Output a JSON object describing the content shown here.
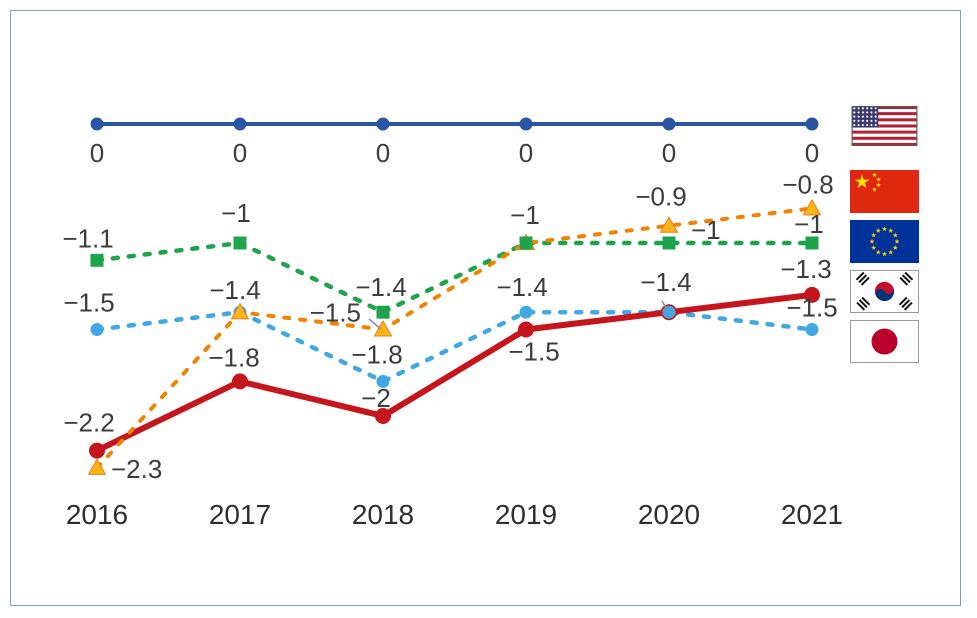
{
  "frame": {
    "background": "#ffffff",
    "border_color": "#7ba2c4"
  },
  "text_color": "#3c3c3c",
  "chart_data": {
    "type": "line",
    "x_labels": [
      "2016",
      "2017",
      "2018",
      "2019",
      "2020",
      "2021"
    ],
    "ylim": [
      -2.6,
      0.35
    ],
    "grid": false,
    "legend_position": "right",
    "legend_style": "country-flags",
    "series": [
      {
        "name": "United States",
        "icon": "usa-flag-icon",
        "line_color": "#2a55a2",
        "marker_color": "#2a55a2",
        "line_style": "solid",
        "marker": "circle",
        "values": [
          0,
          0,
          0,
          0,
          0,
          0
        ],
        "point_labels": [
          "0",
          "0",
          "0",
          "0",
          "0",
          "0"
        ]
      },
      {
        "name": "China",
        "icon": "china-flag-icon",
        "line_color": "#f08300",
        "marker_color": "#fdb515",
        "line_style": "dashed",
        "marker": "triangle",
        "values": [
          -2.3,
          -1.4,
          -1.5,
          -1,
          -0.9,
          -0.8
        ],
        "point_labels": [
          "−2.3",
          "−1.4",
          "−1.5",
          null,
          "−0.9",
          "−0.8"
        ]
      },
      {
        "name": "European Union",
        "icon": "eu-flag-icon",
        "line_color": "#1fa44d",
        "marker_color": "#1fa44d",
        "line_style": "dashed",
        "marker": "square",
        "values": [
          -1.1,
          -1,
          -1.4,
          -1,
          -1,
          -1
        ],
        "point_labels": [
          "−1.1",
          "−1",
          "−1.4",
          "−1",
          "−1",
          "−1"
        ]
      },
      {
        "name": "South Korea",
        "icon": "korea-flag-icon",
        "line_color": "#c5161d",
        "marker_color": "#c5161d",
        "line_style": "solid",
        "marker": "circle",
        "values": [
          -2.2,
          -1.8,
          -2,
          -1.5,
          -1.4,
          -1.3
        ],
        "point_labels": [
          "−2.2",
          "−1.8",
          "−2",
          "−1.5",
          null,
          "−1.3"
        ]
      },
      {
        "name": "Japan",
        "icon": "japan-flag-icon",
        "line_color": "#41a8e1",
        "marker_color": "#41a8e1",
        "line_style": "dashed",
        "marker": "circle",
        "values": [
          -1.5,
          -1.4,
          -1.8,
          -1.4,
          -1.4,
          -1.5
        ],
        "point_labels": [
          "−1.5",
          null,
          "−1.8",
          "−1.4",
          "−1.4",
          "−1.5"
        ]
      }
    ]
  }
}
